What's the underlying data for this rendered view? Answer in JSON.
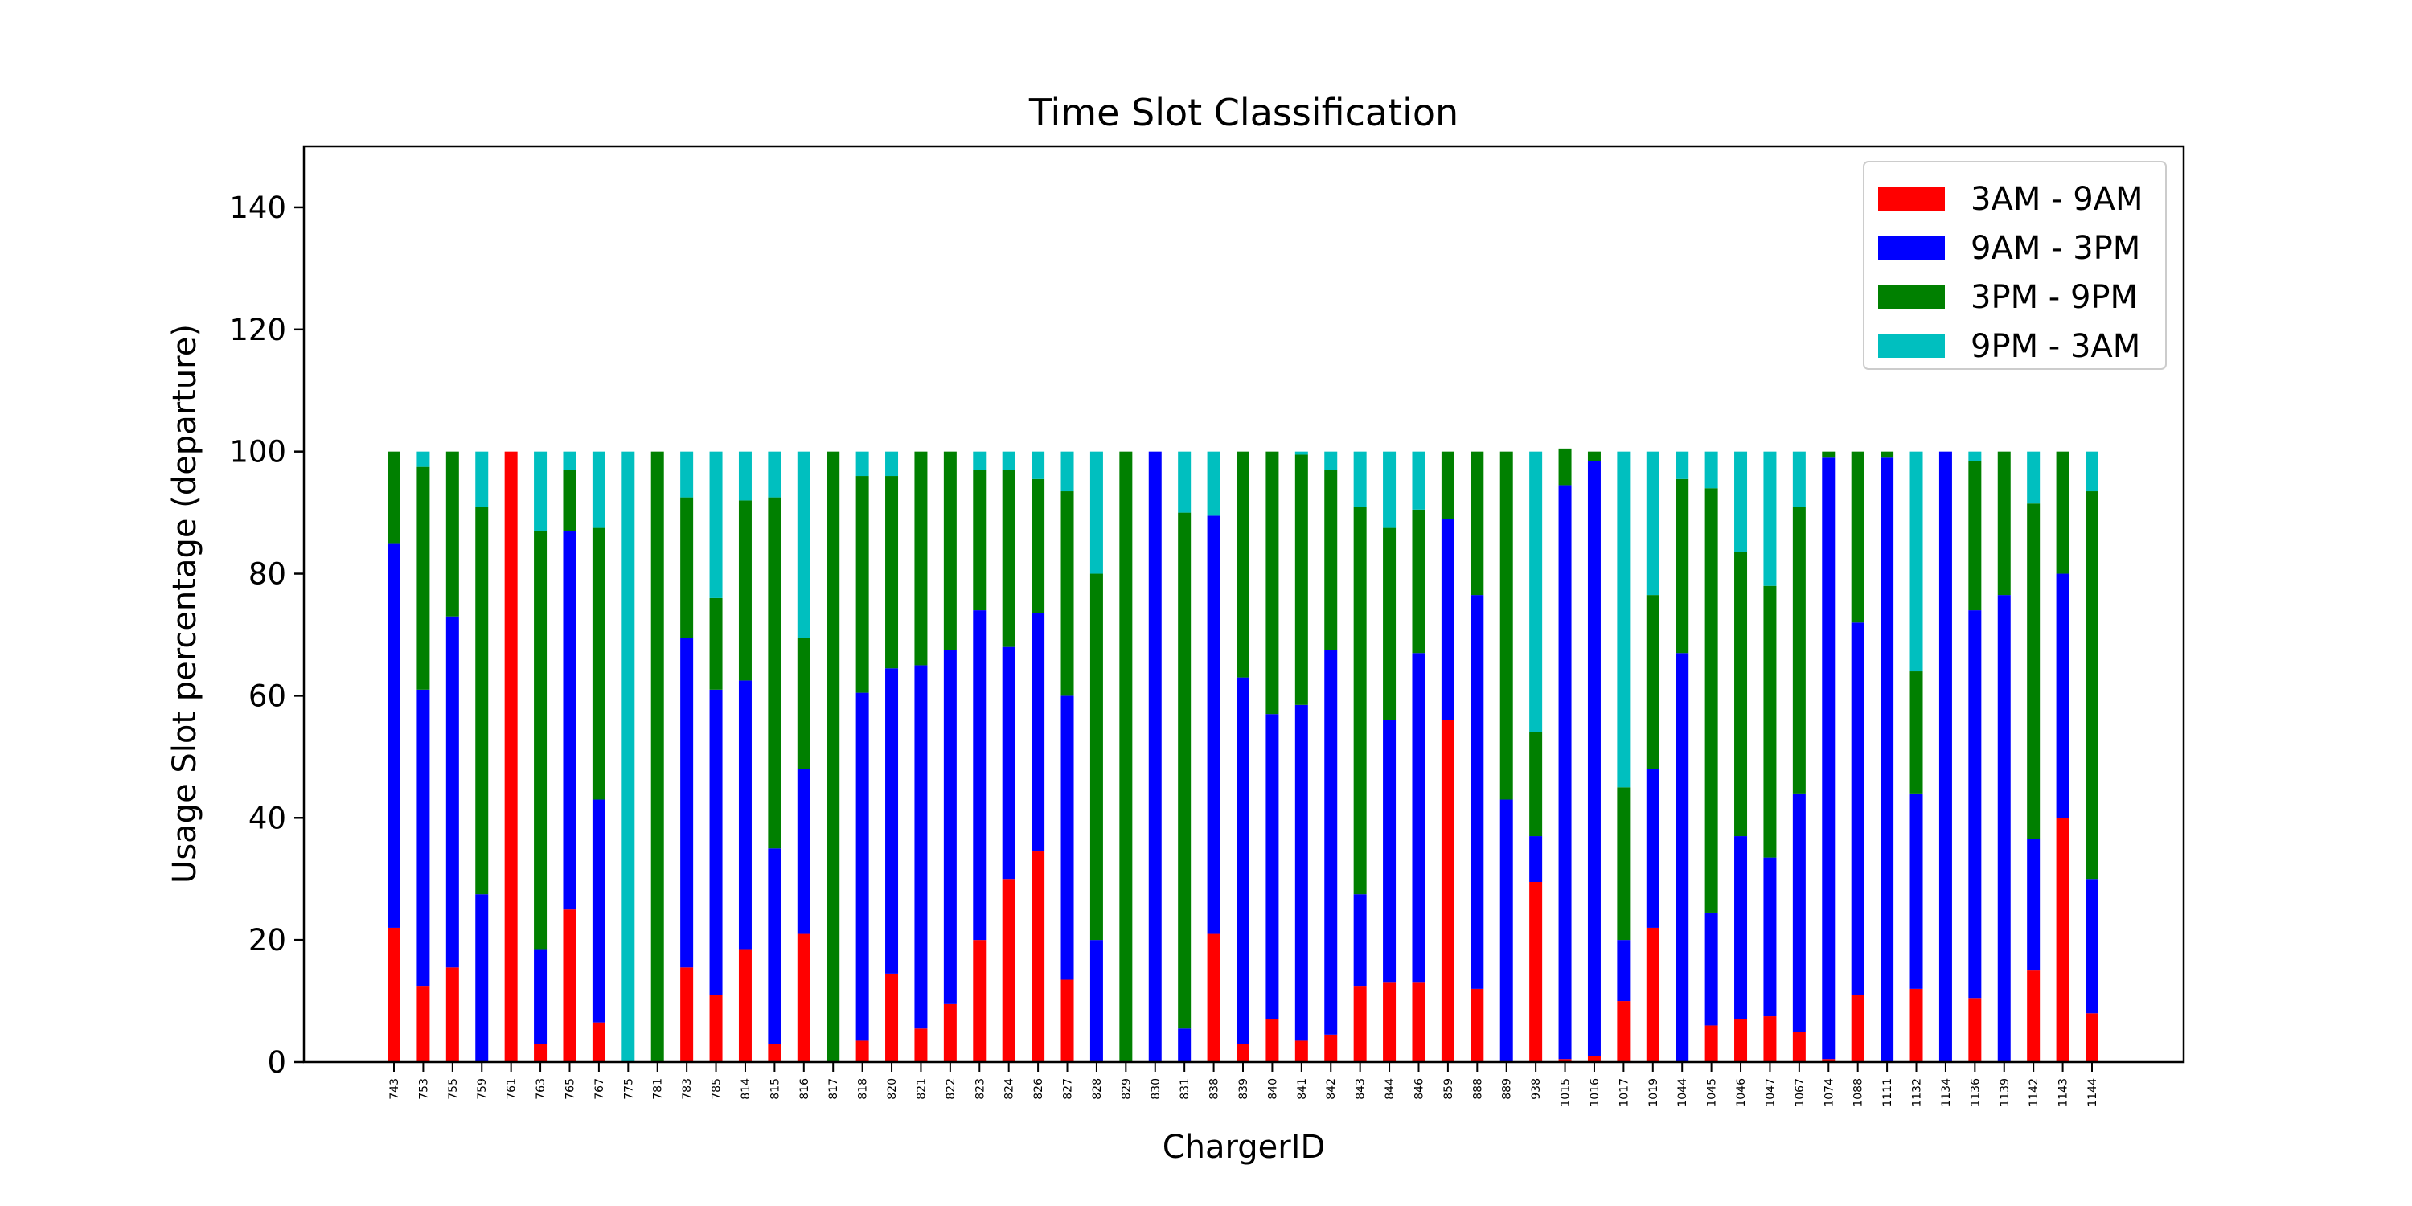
{
  "chart_data": {
    "type": "bar",
    "stacked": true,
    "title": "Time Slot Classification",
    "xlabel": "ChargerID",
    "ylabel": "Usage Slot percentage (departure)",
    "ylim": [
      0,
      150
    ],
    "yticks": [
      0,
      20,
      40,
      60,
      80,
      100,
      120,
      140
    ],
    "grid": false,
    "legend_position": "top-right",
    "categories": [
      "743",
      "753",
      "755",
      "759",
      "761",
      "763",
      "765",
      "767",
      "775",
      "781",
      "783",
      "785",
      "814",
      "815",
      "816",
      "817",
      "818",
      "820",
      "821",
      "822",
      "823",
      "824",
      "826",
      "827",
      "828",
      "829",
      "830",
      "831",
      "838",
      "839",
      "840",
      "841",
      "842",
      "843",
      "844",
      "846",
      "859",
      "888",
      "889",
      "938",
      "1015",
      "1016",
      "1017",
      "1019",
      "1044",
      "1045",
      "1046",
      "1047",
      "1067",
      "1074",
      "1088",
      "1111",
      "1132",
      "1134",
      "1136",
      "1139",
      "1142",
      "1143",
      "1144"
    ],
    "series": [
      {
        "name": "3AM - 9AM",
        "color": "#ff0000",
        "values": [
          22,
          12.5,
          15.5,
          0,
          100,
          3,
          25,
          6.5,
          0,
          0,
          15.5,
          11,
          18.5,
          3,
          21,
          0,
          3.5,
          14.5,
          5.5,
          9.5,
          20,
          30,
          34.5,
          13.5,
          0,
          0,
          0,
          0,
          21,
          3,
          7,
          3.5,
          4.5,
          12.5,
          13,
          13,
          56,
          12,
          0,
          29.5,
          0.5,
          1,
          10,
          22,
          0,
          6,
          7,
          7.5,
          5,
          0.5,
          11,
          0,
          12,
          0,
          10.5,
          0,
          15,
          40,
          8
        ]
      },
      {
        "name": "9AM - 3PM",
        "color": "#0000ff",
        "values": [
          63,
          48.5,
          57.5,
          27.5,
          0,
          15.5,
          62,
          36.5,
          0,
          0,
          54,
          50,
          44,
          32,
          27,
          0,
          57,
          50,
          59.5,
          58,
          54,
          38,
          39,
          46.5,
          20,
          0,
          100,
          5.5,
          68.5,
          60,
          50,
          55,
          63,
          15,
          43,
          54,
          33,
          64.5,
          43,
          7.5,
          94,
          97.5,
          10,
          26,
          67,
          18.5,
          30,
          26,
          39,
          98.5,
          61,
          99,
          32,
          100,
          63.5,
          76.5,
          21.5,
          40,
          22
        ]
      },
      {
        "name": "3PM - 9PM",
        "color": "#008000",
        "values": [
          15,
          36.5,
          27,
          63.5,
          0,
          68.5,
          10,
          44.5,
          0,
          100,
          23,
          15,
          29.5,
          57.5,
          21.5,
          100,
          35.5,
          31.5,
          35,
          32.5,
          23,
          29,
          22,
          33.5,
          60,
          100,
          0,
          84.5,
          0,
          37,
          43,
          41,
          29.5,
          63.5,
          31.5,
          23.5,
          11,
          23.5,
          57,
          17,
          6,
          1.5,
          25,
          28.5,
          28.5,
          69.5,
          46.5,
          44.5,
          47,
          1,
          28,
          1,
          20,
          0,
          24.5,
          23.5,
          55,
          20,
          63.5
        ]
      },
      {
        "name": "9PM - 3AM",
        "color": "#00bfbf",
        "values": [
          0,
          2.5,
          0,
          9,
          0,
          13,
          3,
          12.5,
          100,
          0,
          7.5,
          24,
          8,
          7.5,
          30.5,
          0,
          4,
          4,
          0,
          0,
          3,
          3,
          4.5,
          6.5,
          20,
          0,
          0,
          10,
          10.5,
          0,
          0,
          0.5,
          3,
          9,
          12.5,
          9.5,
          0,
          0,
          0,
          46,
          0,
          0,
          55,
          23.5,
          4.5,
          6,
          16.5,
          22,
          9,
          0,
          0,
          0,
          36,
          0,
          1.5,
          0,
          8.5,
          0,
          6.5
        ]
      }
    ]
  }
}
